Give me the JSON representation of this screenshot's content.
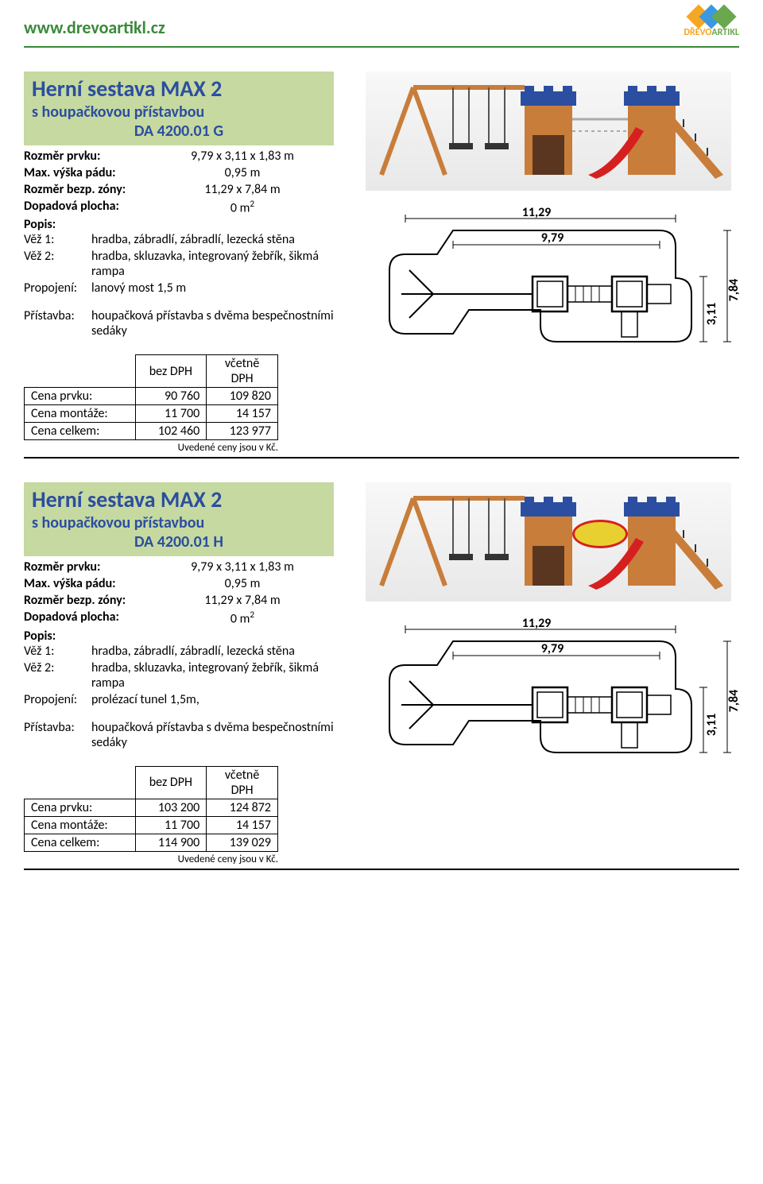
{
  "header": {
    "url": "www.drevoartikl.cz",
    "brand_prefix": "DŘEVO",
    "brand_suffix": "ARTIKL"
  },
  "products": [
    {
      "title": "Herní sestava MAX 2",
      "subtitle": "s houpačkovou přístavbou",
      "code": "DA 4200.01 G",
      "specs": {
        "rozmer_label": "Rozměr prvku:",
        "rozmer_val": "9,79 x 3,11 x 1,83 m",
        "vyska_label": "Max. výška pádu:",
        "vyska_val": "0,95 m",
        "zona_label": "Rozměr bezp. zóny:",
        "zona_val": "11,29 x 7,84 m",
        "plocha_label": "Dopadová plocha:",
        "plocha_val_pre": "0 m",
        "plocha_val_sup": "2"
      },
      "popis_label": "Popis:",
      "desc": [
        {
          "k": "Věž 1:",
          "v": "hradba, zábradlí, zábradlí, lezecká stěna"
        },
        {
          "k": "Věž 2:",
          "v": "hradba, skluzavka, integrovaný žebřík, šikmá rampa"
        },
        {
          "k": "Propojení:",
          "v": "lanový most 1,5 m"
        },
        {
          "k": "",
          "v": ""
        },
        {
          "k": "Přístavba:",
          "v": "houpačková přístavba s dvěma bespečnostními sedáky"
        }
      ],
      "price_headers": [
        "bez DPH",
        "včetně DPH"
      ],
      "prices": [
        {
          "label": "Cena prvku:",
          "a": "90 760",
          "b": "109 820"
        },
        {
          "label": "Cena montáže:",
          "a": "11 700",
          "b": "14 157"
        },
        {
          "label": "Cena celkem:",
          "a": "102 460",
          "b": "123 977"
        }
      ],
      "note": "Uvedené ceny jsou v Kč.",
      "plan": {
        "w1": "11,29",
        "w2": "9,79",
        "h1": "3,11",
        "h2": "7,84"
      }
    },
    {
      "title": "Herní sestava MAX 2",
      "subtitle": "s houpačkovou přístavbou",
      "code": "DA 4200.01 H",
      "specs": {
        "rozmer_label": "Rozměr prvku:",
        "rozmer_val": "9,79 x 3,11 x 1,83 m",
        "vyska_label": "Max. výška pádu:",
        "vyska_val": "0,95 m",
        "zona_label": "Rozměr bezp. zóny:",
        "zona_val": "11,29 x 7,84 m",
        "plocha_label": "Dopadová plocha:",
        "plocha_val_pre": "0 m",
        "plocha_val_sup": "2"
      },
      "popis_label": "Popis:",
      "desc": [
        {
          "k": "Věž 1:",
          "v": "hradba, zábradlí, zábradlí, lezecká stěna"
        },
        {
          "k": "Věž 2:",
          "v": "hradba, skluzavka, integrovaný žebřík, šikmá rampa"
        },
        {
          "k": "Propojení:",
          "v": "prolézací tunel 1,5m,"
        },
        {
          "k": "",
          "v": ""
        },
        {
          "k": "Přístavba:",
          "v": "houpačková přístavba s dvěma bespečnostními sedáky"
        }
      ],
      "price_headers": [
        "bez DPH",
        "včetně DPH"
      ],
      "prices": [
        {
          "label": "Cena prvku:",
          "a": "103 200",
          "b": "124 872"
        },
        {
          "label": "Cena montáže:",
          "a": "11 700",
          "b": "14 157"
        },
        {
          "label": "Cena celkem:",
          "a": "114 900",
          "b": "139 029"
        }
      ],
      "note": "Uvedené ceny jsou v Kč.",
      "plan": {
        "w1": "11,29",
        "w2": "9,79",
        "h1": "3,11",
        "h2": "7,84"
      }
    }
  ]
}
